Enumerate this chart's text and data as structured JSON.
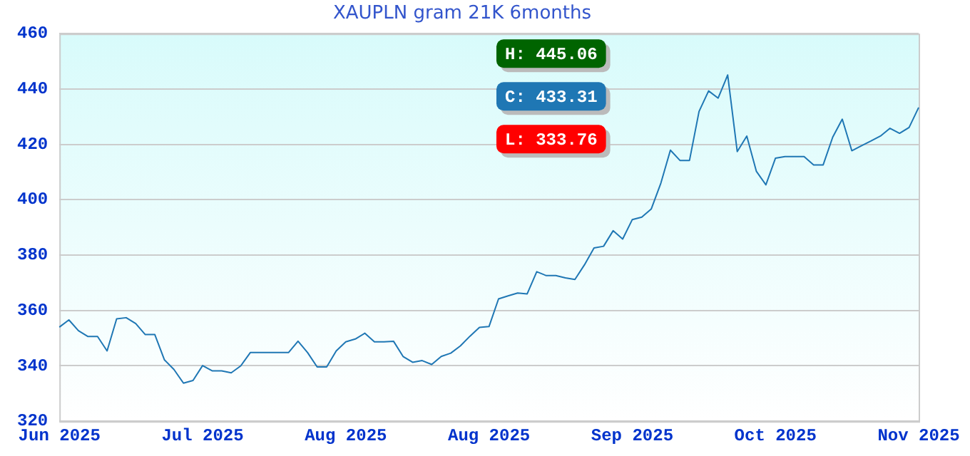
{
  "chart_data": {
    "type": "line",
    "title": "XAUPLN gram 21K 6months",
    "categories": [
      "Jun 2025",
      null,
      null,
      null,
      null,
      null,
      null,
      null,
      null,
      null,
      null,
      null,
      null,
      null,
      null,
      "Jul 2025",
      null,
      null,
      null,
      null,
      null,
      null,
      null,
      null,
      null,
      null,
      null,
      null,
      null,
      null,
      "Aug 2025",
      null,
      null,
      null,
      null,
      null,
      null,
      null,
      null,
      null,
      null,
      null,
      null,
      null,
      null,
      "Aug 2025",
      null,
      null,
      null,
      null,
      null,
      null,
      null,
      null,
      null,
      null,
      null,
      null,
      null,
      null,
      "Sep 2025",
      null,
      null,
      null,
      null,
      null,
      null,
      null,
      null,
      null,
      null,
      null,
      null,
      null,
      null,
      "Oct 2025",
      null,
      null,
      null,
      null,
      null,
      null,
      null,
      null,
      null,
      null,
      null,
      null,
      null,
      null,
      "Nov 2025"
    ],
    "series": [
      {
        "color": "#1f77b4",
        "values": [
          354,
          356.6,
          352.7,
          350.6,
          350.6,
          345.4,
          357,
          357.4,
          355.3,
          351.3,
          351.3,
          342.2,
          338.7,
          333.76,
          334.7,
          340.1,
          338.2,
          338.2,
          337.5,
          340,
          344.8,
          344.8,
          344.8,
          344.8,
          344.8,
          348.9,
          344.8,
          339.6,
          339.6,
          345.4,
          348.7,
          349.7,
          351.8,
          348.7,
          348.7,
          348.9,
          343.4,
          341.3,
          341.9,
          340.5,
          343.4,
          344.6,
          347.2,
          350.7,
          353.9,
          354.2,
          364.2,
          365.3,
          366.3,
          366,
          374,
          372.6,
          372.6,
          371.8,
          371.2,
          376.5,
          382.6,
          383.2,
          388.8,
          385.8,
          392.8,
          393.7,
          396.7,
          406,
          417.9,
          414.2,
          414.2,
          431.9,
          439.3,
          436.7,
          445.06,
          417.4,
          423,
          410.3,
          405.4,
          415,
          415.6,
          415.6,
          415.6,
          412.6,
          412.6,
          422.6,
          429.1,
          417.7,
          419.5,
          421.2,
          423,
          425.8,
          424,
          426.1,
          433.31
        ]
      }
    ],
    "ylim": [
      320,
      460
    ],
    "yticks": [
      320,
      340,
      360,
      380,
      400,
      420,
      440,
      460
    ],
    "grid": "y",
    "marker": "none",
    "line_style": "solid",
    "legend": false,
    "annotations": [
      "H: 445.06",
      "C: 433.31",
      "L: 333.76"
    ]
  }
}
